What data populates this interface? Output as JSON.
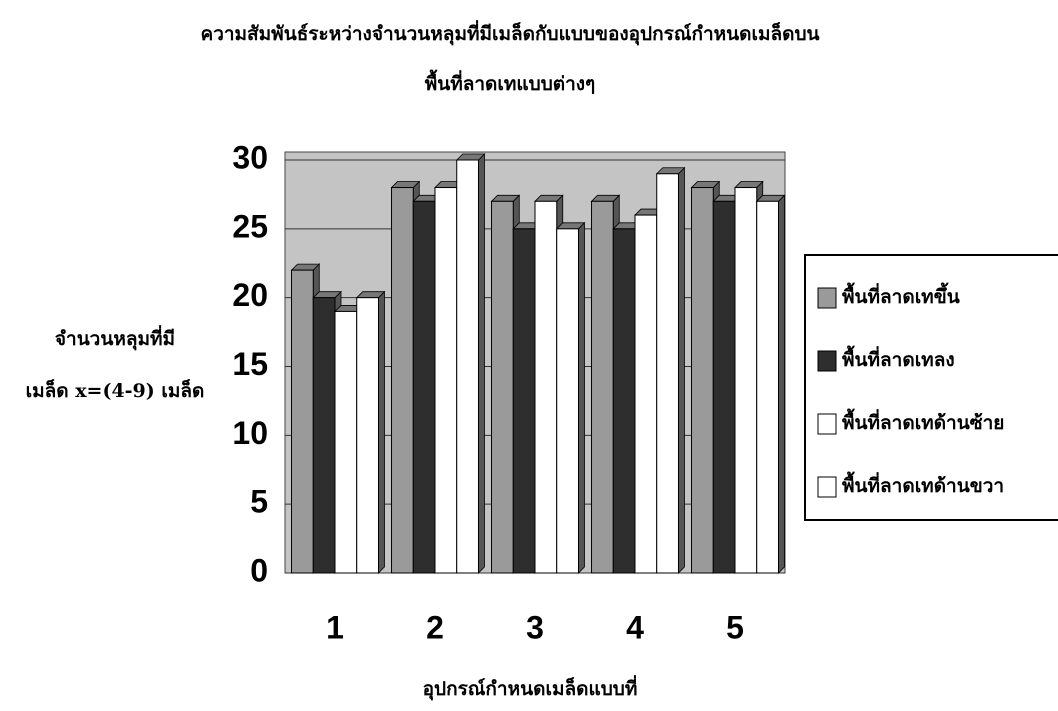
{
  "chart_data": {
    "type": "bar",
    "title": [
      "ความสัมพันธ์ระหว่างจำนวนหลุมที่มีเมล็ดกับแบบของอุปกรณ์กำหนดเมล็ดบน",
      "พื้นที่ลาดเทแบบต่างๆ"
    ],
    "y_label": [
      "จำนวนหลุมที่มี",
      "เมล็ด x=(4-9) เมล็ด"
    ],
    "x_label": "อุปกรณ์กำหนดเมล็ดแบบที่",
    "categories": [
      "1",
      "2",
      "3",
      "4",
      "5"
    ],
    "series": [
      {
        "name": "พื้นที่ลาดเทขึ้น",
        "color": "#9a9a9a",
        "values": [
          22,
          28,
          27,
          27,
          28
        ]
      },
      {
        "name": "พื้นที่ลาดเทลง",
        "color": "#2e2e2e",
        "values": [
          20,
          27,
          25,
          25,
          27
        ]
      },
      {
        "name": "พื้นที่ลาดเทด้านซ้าย",
        "color": "#ffffff",
        "values": [
          19,
          28,
          27,
          26,
          28
        ]
      },
      {
        "name": "พื้นที่ลาดเทด้านขวา",
        "color": "#ffffff",
        "values": [
          20,
          30,
          25,
          29,
          27
        ]
      }
    ],
    "ylim": [
      0,
      30
    ],
    "yticks": [
      0,
      5,
      10,
      15,
      20,
      25,
      30
    ],
    "grid": true,
    "legend": "right"
  }
}
